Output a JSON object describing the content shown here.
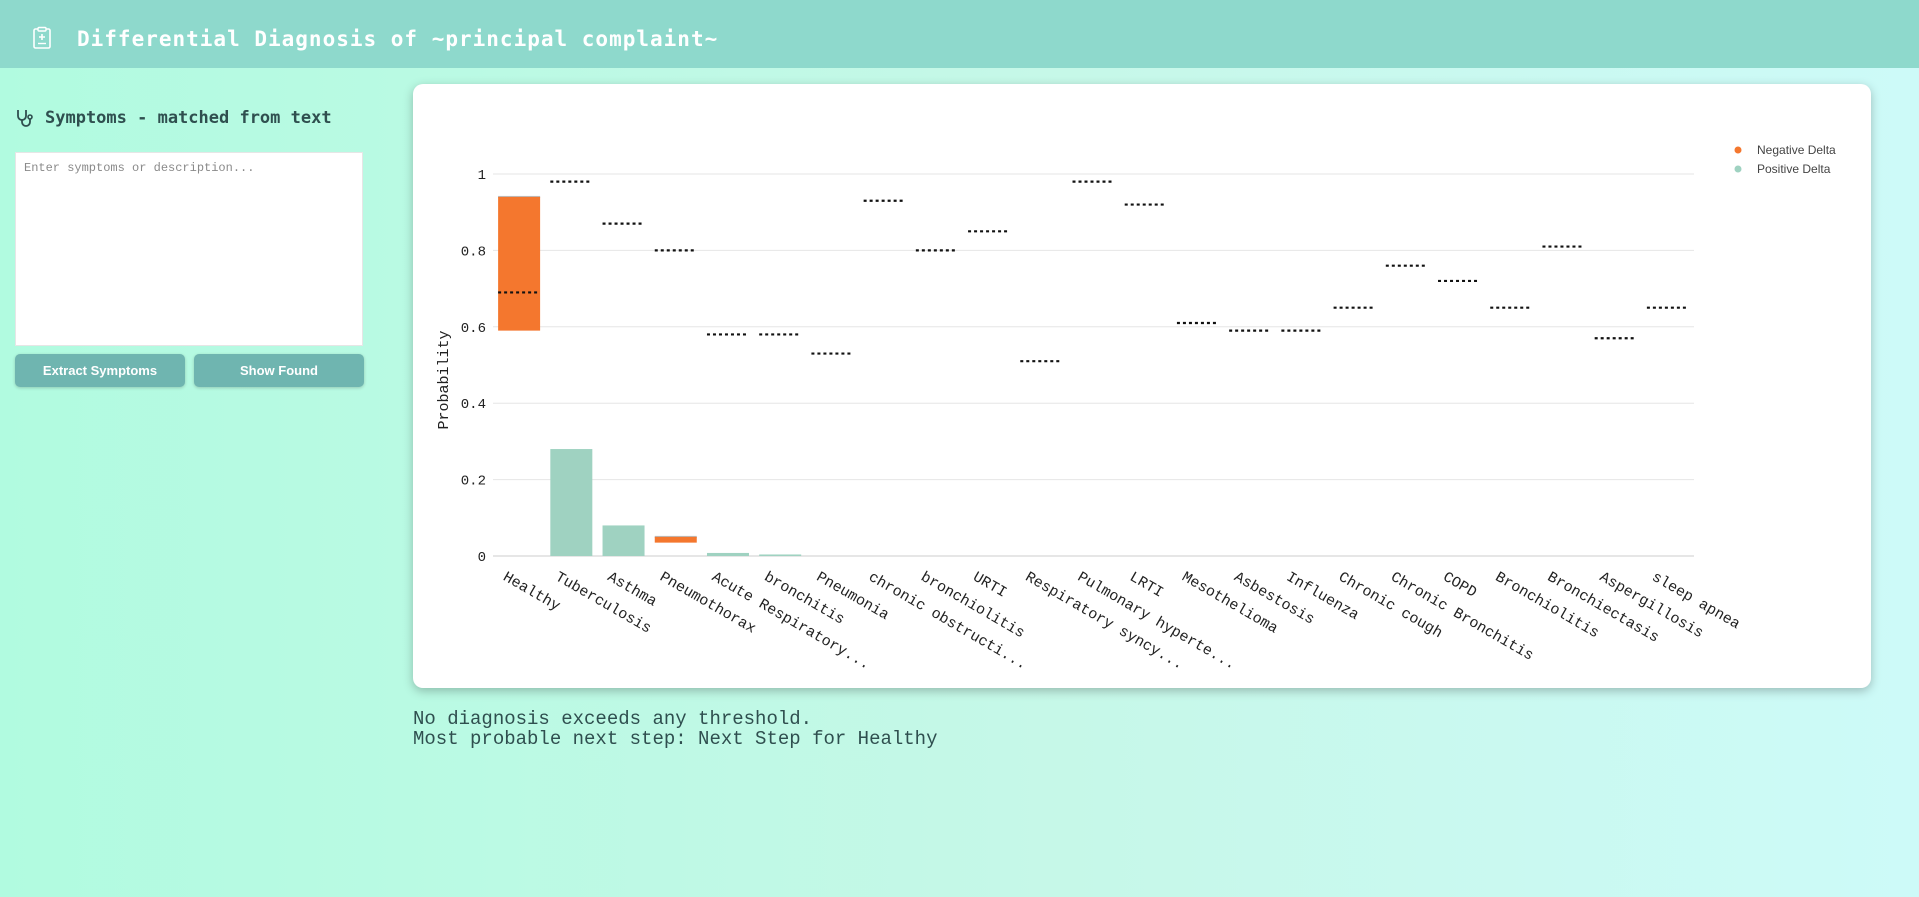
{
  "header": {
    "title": "Differential Diagnosis of ~principal complaint~",
    "icon": "clipboard-medical-icon"
  },
  "sidebar": {
    "title": "Symptoms - matched from text",
    "icon": "stethoscope-icon",
    "textarea_placeholder": "Enter symptoms or description...",
    "textarea_value": "",
    "extract_label": "Extract Symptoms",
    "show_label": "Show Found"
  },
  "status": {
    "line1": "No diagnosis exceeds any threshold.",
    "line2": "Most probable next step: Next Step for Healthy"
  },
  "colors": {
    "negative": "#f4772e",
    "positive": "#9fd2c1",
    "base_line": "#bbbbbb",
    "threshold": "#111111"
  },
  "chart_data": {
    "type": "bar",
    "ylabel": "Probability",
    "ylim": [
      0,
      1.05
    ],
    "yticks": [
      "0",
      "0.2",
      "0.4",
      "0.6",
      "0.8",
      "1"
    ],
    "ytick_values": [
      0,
      0.2,
      0.4,
      0.6,
      0.8,
      1
    ],
    "grid": true,
    "legend_position": "top-right",
    "legend": [
      "Negative Delta",
      "Positive Delta"
    ],
    "categories": [
      "Healthy",
      "Tuberculosis",
      "Asthma",
      "Pneumothorax",
      "Acute Respiratory...",
      "bronchitis",
      "Pneumonia",
      "chronic obstructi...",
      "bronchiolitis",
      "URTI",
      "Respiratory syncy...",
      "Pulmonary hyperte...",
      "LRTI",
      "Mesothelioma",
      "Asbestosis",
      "Influenza",
      "Chronic cough",
      "Chronic Bronchitis",
      "COPD",
      "Bronchiolitis",
      "Bronchiectasis",
      "Aspergillosis",
      "sleep apnea"
    ],
    "bars": [
      {
        "from": 0.94,
        "to": 0.59,
        "delta": "negative"
      },
      {
        "from": 0,
        "to": 0.28,
        "delta": "positive"
      },
      {
        "from": 0,
        "to": 0.08,
        "delta": "positive"
      },
      {
        "from": 0.05,
        "to": 0.035,
        "delta": "negative"
      },
      {
        "from": 0,
        "to": 0.008,
        "delta": "positive"
      },
      {
        "from": 0,
        "to": 0.004,
        "delta": "positive"
      },
      {
        "from": 0,
        "to": 0,
        "delta": "positive"
      },
      {
        "from": 0,
        "to": 0,
        "delta": "positive"
      },
      {
        "from": 0,
        "to": 0,
        "delta": "positive"
      },
      {
        "from": 0,
        "to": 0,
        "delta": "positive"
      },
      {
        "from": 0,
        "to": 0,
        "delta": "positive"
      },
      {
        "from": 0,
        "to": 0,
        "delta": "positive"
      },
      {
        "from": 0,
        "to": 0,
        "delta": "positive"
      },
      {
        "from": 0,
        "to": 0,
        "delta": "positive"
      },
      {
        "from": 0,
        "to": 0,
        "delta": "positive"
      },
      {
        "from": 0,
        "to": 0,
        "delta": "positive"
      },
      {
        "from": 0,
        "to": 0,
        "delta": "positive"
      },
      {
        "from": 0,
        "to": 0,
        "delta": "positive"
      },
      {
        "from": 0,
        "to": 0,
        "delta": "positive"
      },
      {
        "from": 0,
        "to": 0,
        "delta": "positive"
      },
      {
        "from": 0,
        "to": 0,
        "delta": "positive"
      },
      {
        "from": 0,
        "to": 0,
        "delta": "positive"
      },
      {
        "from": 0,
        "to": 0,
        "delta": "positive"
      }
    ],
    "thresholds": [
      0.69,
      0.98,
      0.87,
      0.8,
      0.58,
      0.58,
      0.53,
      0.93,
      0.8,
      0.85,
      0.51,
      0.98,
      0.92,
      0.61,
      0.59,
      0.59,
      0.65,
      0.76,
      0.72,
      0.65,
      0.81,
      0.57,
      0.65
    ]
  }
}
